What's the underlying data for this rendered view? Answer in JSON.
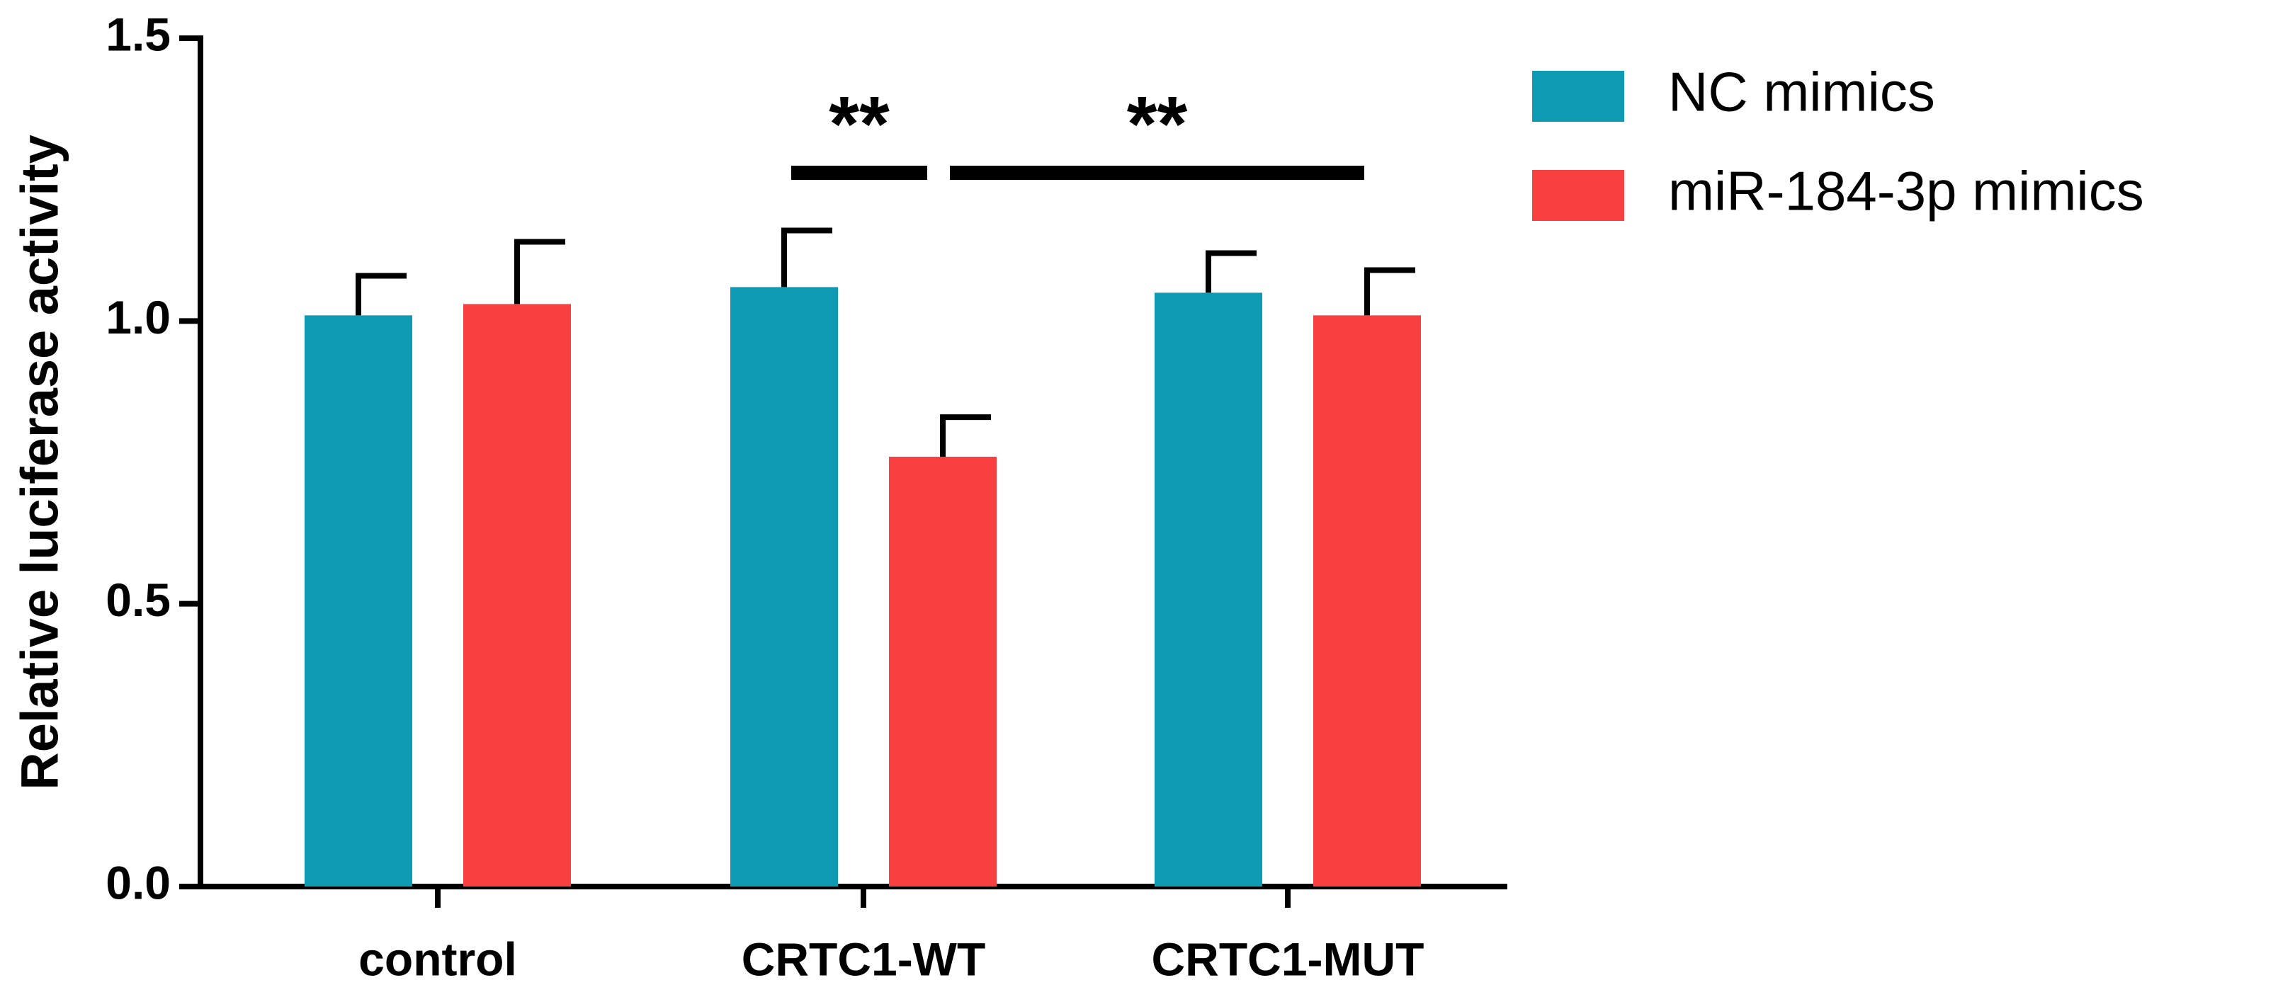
{
  "chart_data": {
    "type": "bar",
    "ylabel": "Relative luciferase activity",
    "categories": [
      "control",
      "CRTC1-WT",
      "CRTC1-MUT"
    ],
    "series": [
      {
        "name": "NC mimics",
        "color": "#0e9ab3",
        "values": [
          1.01,
          1.06,
          1.05
        ],
        "errors": [
          0.07,
          0.1,
          0.07
        ]
      },
      {
        "name": "miR-184-3p mimics",
        "color": "#f94040",
        "values": [
          1.03,
          0.76,
          1.01
        ],
        "errors": [
          0.11,
          0.07,
          0.08
        ]
      }
    ],
    "ylim": [
      0,
      1.5
    ],
    "yticks": [
      {
        "value": 0,
        "label": "0.0"
      },
      0.5,
      {
        "value": 1,
        "label": "1.0"
      },
      1.5
    ],
    "annotations": [
      "**",
      "**"
    ],
    "legend": "upper right"
  }
}
